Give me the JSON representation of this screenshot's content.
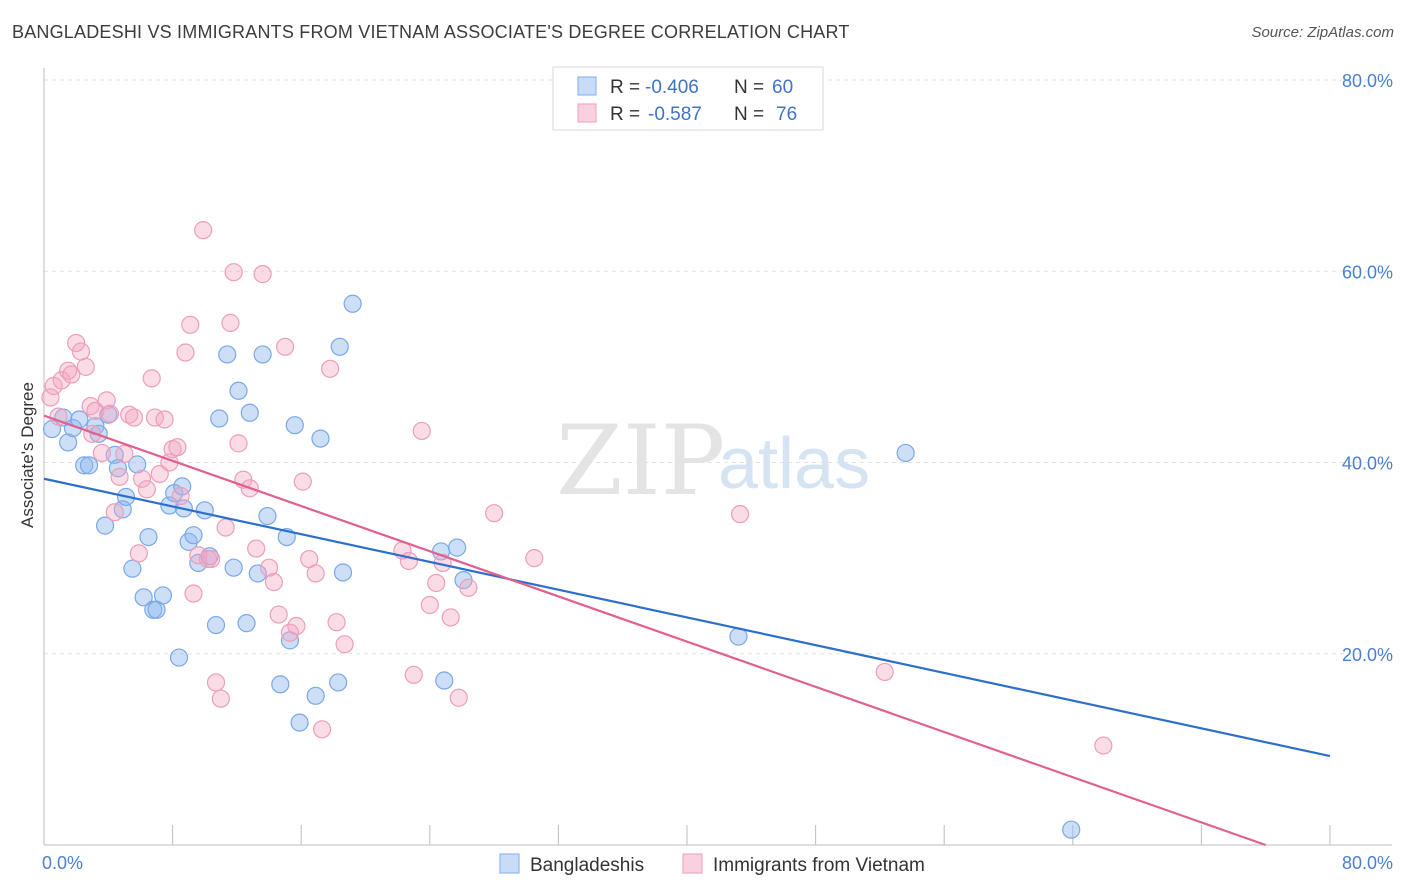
{
  "title": "BANGLADESHI VS IMMIGRANTS FROM VIETNAM ASSOCIATE'S DEGREE CORRELATION CHART",
  "source": "Source: ZipAtlas.com",
  "watermark": {
    "zip": "ZIP",
    "atlas": "atlas"
  },
  "legend_box": [
    {
      "r_label": "R =",
      "r_value": "-0.406",
      "n_label": "N =",
      "n_value": "60"
    },
    {
      "r_label": "R =",
      "r_value": "-0.587",
      "n_label": "N =",
      "n_value": "76"
    }
  ],
  "bottom_legend": [
    "Bangladeshis",
    "Immigrants from Vietnam"
  ],
  "chart_data": {
    "type": "scatter",
    "xlabel": "",
    "ylabel": "Associate's Degree",
    "xlim": [
      0,
      80
    ],
    "ylim": [
      0,
      80
    ],
    "x_ticks_labels": [
      "0.0%",
      "80.0%"
    ],
    "y_ticks": [
      {
        "value": 20,
        "label": "20.0%"
      },
      {
        "value": 40,
        "label": "40.0%"
      },
      {
        "value": 60,
        "label": "60.0%"
      },
      {
        "value": 80,
        "label": "80.0%"
      }
    ],
    "grid": true,
    "colors": {
      "series1": "#8fb8ee",
      "series1_line": "#2d6fcc",
      "series2": "#f2a7c2",
      "series2_line": "#e0608f"
    },
    "series": [
      {
        "name": "Bangladeshis",
        "trend": {
          "x": [
            0,
            80
          ],
          "y": [
            38.3,
            9.3
          ]
        },
        "points": [
          [
            0.5,
            43.5
          ],
          [
            1.2,
            44.7
          ],
          [
            1.5,
            42.1
          ],
          [
            1.8,
            43.6
          ],
          [
            2.2,
            44.5
          ],
          [
            2.5,
            39.7
          ],
          [
            2.8,
            39.7
          ],
          [
            3.2,
            43.8
          ],
          [
            3.4,
            43.0
          ],
          [
            3.8,
            33.4
          ],
          [
            4.0,
            45.0
          ],
          [
            4.4,
            40.8
          ],
          [
            4.6,
            39.4
          ],
          [
            4.9,
            35.1
          ],
          [
            5.1,
            36.4
          ],
          [
            5.5,
            28.9
          ],
          [
            5.8,
            39.8
          ],
          [
            6.2,
            25.9
          ],
          [
            6.5,
            32.2
          ],
          [
            6.8,
            24.6
          ],
          [
            7.0,
            24.6
          ],
          [
            7.4,
            26.1
          ],
          [
            7.8,
            35.5
          ],
          [
            8.1,
            36.8
          ],
          [
            8.4,
            19.6
          ],
          [
            8.7,
            35.2
          ],
          [
            9.0,
            31.7
          ],
          [
            9.3,
            32.4
          ],
          [
            9.6,
            29.5
          ],
          [
            10.0,
            35.0
          ],
          [
            10.3,
            30.2
          ],
          [
            10.7,
            23.0
          ],
          [
            10.9,
            44.6
          ],
          [
            11.4,
            51.3
          ],
          [
            11.8,
            29.0
          ],
          [
            12.1,
            47.5
          ],
          [
            12.6,
            23.2
          ],
          [
            12.8,
            45.2
          ],
          [
            13.3,
            28.4
          ],
          [
            13.6,
            51.3
          ],
          [
            13.9,
            34.4
          ],
          [
            14.7,
            16.8
          ],
          [
            15.1,
            32.2
          ],
          [
            15.3,
            21.4
          ],
          [
            15.6,
            43.9
          ],
          [
            15.9,
            12.8
          ],
          [
            16.9,
            15.6
          ],
          [
            17.2,
            42.5
          ],
          [
            18.3,
            17.0
          ],
          [
            18.6,
            28.5
          ],
          [
            18.4,
            52.1
          ],
          [
            19.2,
            56.6
          ],
          [
            24.7,
            30.7
          ],
          [
            24.9,
            17.2
          ],
          [
            25.7,
            31.1
          ],
          [
            26.1,
            27.7
          ],
          [
            43.2,
            21.8
          ],
          [
            53.6,
            41.0
          ],
          [
            63.9,
            1.6
          ],
          [
            8.6,
            37.5
          ]
        ]
      },
      {
        "name": "Immigrants from Vietnam",
        "trend": {
          "x": [
            0,
            76
          ],
          "y": [
            44.9,
            0.0
          ]
        },
        "points": [
          [
            0.4,
            46.8
          ],
          [
            0.6,
            48.0
          ],
          [
            0.9,
            44.8
          ],
          [
            1.1,
            48.6
          ],
          [
            1.5,
            49.6
          ],
          [
            1.7,
            49.2
          ],
          [
            2.0,
            52.5
          ],
          [
            2.3,
            51.6
          ],
          [
            2.6,
            50.0
          ],
          [
            2.9,
            45.9
          ],
          [
            3.2,
            45.4
          ],
          [
            3.6,
            41.0
          ],
          [
            3.9,
            46.5
          ],
          [
            4.1,
            45.1
          ],
          [
            4.4,
            34.8
          ],
          [
            4.7,
            38.5
          ],
          [
            5.0,
            40.9
          ],
          [
            5.3,
            45.0
          ],
          [
            5.6,
            44.7
          ],
          [
            5.9,
            30.5
          ],
          [
            6.1,
            38.3
          ],
          [
            6.4,
            37.2
          ],
          [
            6.7,
            48.8
          ],
          [
            6.9,
            44.7
          ],
          [
            7.2,
            38.8
          ],
          [
            7.5,
            44.5
          ],
          [
            7.8,
            40.0
          ],
          [
            8.0,
            41.4
          ],
          [
            8.3,
            41.6
          ],
          [
            8.5,
            36.5
          ],
          [
            8.8,
            51.5
          ],
          [
            9.1,
            54.4
          ],
          [
            9.3,
            26.3
          ],
          [
            9.6,
            30.3
          ],
          [
            9.9,
            64.3
          ],
          [
            10.2,
            29.9
          ],
          [
            10.4,
            29.9
          ],
          [
            10.7,
            17.0
          ],
          [
            11.0,
            15.3
          ],
          [
            11.3,
            33.2
          ],
          [
            11.6,
            54.6
          ],
          [
            11.8,
            59.9
          ],
          [
            12.1,
            42.0
          ],
          [
            12.4,
            38.2
          ],
          [
            12.8,
            37.3
          ],
          [
            13.2,
            31.0
          ],
          [
            13.6,
            59.7
          ],
          [
            14.0,
            29.0
          ],
          [
            14.3,
            27.5
          ],
          [
            14.6,
            24.1
          ],
          [
            15.0,
            52.1
          ],
          [
            15.3,
            22.2
          ],
          [
            15.7,
            22.9
          ],
          [
            16.1,
            38.0
          ],
          [
            16.5,
            29.9
          ],
          [
            16.9,
            28.4
          ],
          [
            17.3,
            12.1
          ],
          [
            17.8,
            49.8
          ],
          [
            18.2,
            23.3
          ],
          [
            18.7,
            21.0
          ],
          [
            22.3,
            30.8
          ],
          [
            22.7,
            29.7
          ],
          [
            23.0,
            17.8
          ],
          [
            23.5,
            43.3
          ],
          [
            24.0,
            25.1
          ],
          [
            24.4,
            27.4
          ],
          [
            24.8,
            29.5
          ],
          [
            25.3,
            23.8
          ],
          [
            25.8,
            15.4
          ],
          [
            26.4,
            26.9
          ],
          [
            28.0,
            34.7
          ],
          [
            30.5,
            30.0
          ],
          [
            43.3,
            34.6
          ],
          [
            52.3,
            18.1
          ],
          [
            65.9,
            10.4
          ],
          [
            3.0,
            43.0
          ]
        ]
      }
    ]
  }
}
